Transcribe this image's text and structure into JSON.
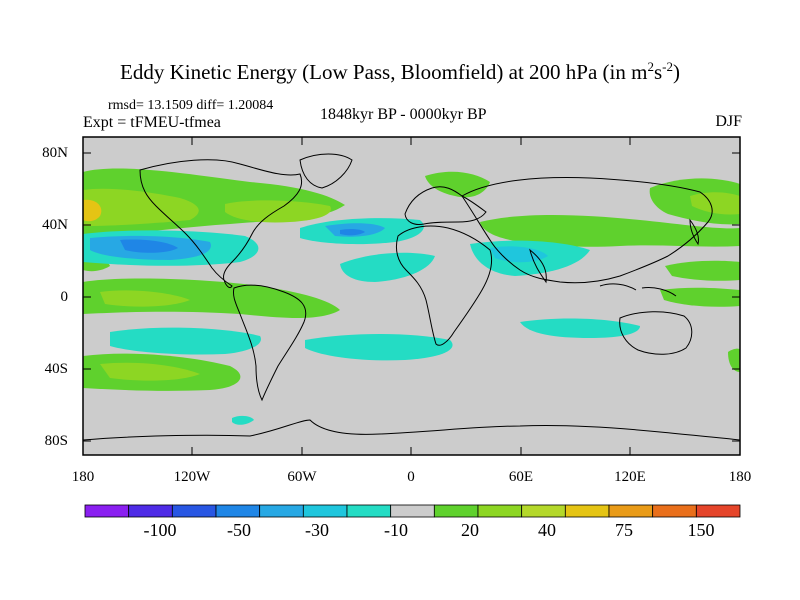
{
  "title": {
    "main": "Eddy Kinetic Energy (Low Pass, Bloomfield) at 200 hPa (in m",
    "exp1": "2",
    "mid": "s",
    "exp2": "-2",
    "close": ")"
  },
  "stats": "rmsd= 13.1509 diff= 1.20084",
  "experiment": "Expt = tFMEU-tfmea",
  "period": "1848kyr BP - 0000kyr BP",
  "season": "DJF",
  "axes": {
    "lat_labels": [
      "80N",
      "40N",
      "0",
      "40S",
      "80S"
    ],
    "lon_labels": [
      "180",
      "120W",
      "60W",
      "0",
      "60E",
      "120E",
      "180"
    ]
  },
  "colorbar": {
    "labels": [
      "-100",
      "-50",
      "-30",
      "-10",
      "20",
      "40",
      "75",
      "150"
    ],
    "colors": [
      "#8a1ff0",
      "#4e2be6",
      "#2856e3",
      "#1f86e6",
      "#27a8e4",
      "#1fc6dd",
      "#24dcc4",
      "#cccccc",
      "#5fd12d",
      "#8dd623",
      "#b4d82a",
      "#e5c414",
      "#e99b18",
      "#e96f1b",
      "#e5452a"
    ]
  },
  "palette": {
    "ocean_gray": "#cccccc",
    "pos_light": "#5fd12d",
    "pos_mid": "#8dd623",
    "pos_strong": "#e5c414",
    "neg_light": "#24dcc4",
    "neg_mid": "#1fc6dd",
    "neg_strong": "#27a8e4",
    "neg_deep": "#1f86e6"
  }
}
